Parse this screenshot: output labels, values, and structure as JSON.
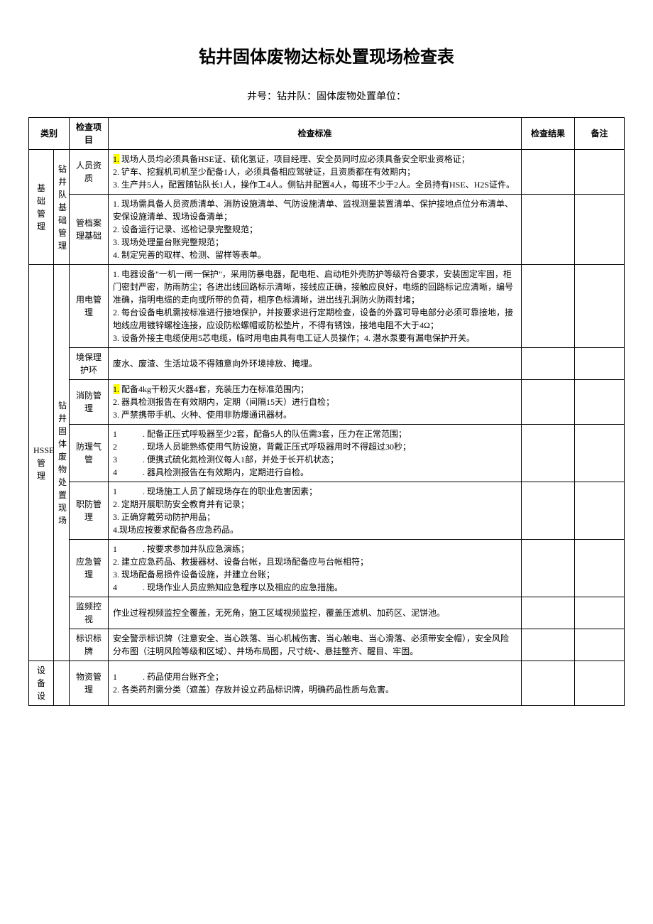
{
  "title": "钻井固体废物达标处置现场检查表",
  "subheader": "井号：钻井队：固体废物处置单位：",
  "headers": {
    "category": "类别",
    "item": "检查项目",
    "standard": "检查标准",
    "result": "检查结果",
    "remark": "备注"
  },
  "colors": {
    "highlight": "#ffff00",
    "border": "#000000",
    "bg": "#ffffff"
  },
  "rows": [
    {
      "cat1": "基础管理",
      "cat1_rowspan": 2,
      "cat2": "钻井队基础管理",
      "cat2_rowspan": 2,
      "item": "人员资质",
      "standard_lines": [
        {
          "text": "1.",
          "hl": true
        },
        {
          "text": " 现场人员均必须具备HSE证、硫化氢证，项目经理、安全员同时应必须具备安全职业资格证；",
          "br": true
        },
        {
          "text": "2. 铲车、挖掘机司机至少配备1人，必须具备相应驾驶证，且资质都在有效期内；",
          "br": true
        },
        {
          "text": "3. 生产井5人，配置随钻队长1人，操作工4人。侧钻井配置4人，每班不少于2人。全员持有HSE、H2S证件。"
        }
      ]
    },
    {
      "item": "管档案理基础",
      "item_vertical": true,
      "standard_lines": [
        {
          "text": "1. 现场需具备人员资质清单、消防设施清单、气防设施清单、监视测量装置清单、保护接地点位分布清单、安保设施清单、现场设备清单；",
          "br": true
        },
        {
          "text": "2. 设备运行记录、巡检记录完整规范；",
          "br": true
        },
        {
          "text": "3. 现场处理量台账完整规范；",
          "br": true
        },
        {
          "text": "4. 制定完善的取样、检测、留样等表单。"
        }
      ]
    },
    {
      "cat1": "HSSE管理",
      "cat1_rowspan": 8,
      "cat2": "钻井固体废物处置现场",
      "cat2_rowspan": 8,
      "item": "用电管理",
      "standard_lines": [
        {
          "text": "1. 电器设备\"一机一闸一保护\"，采用防暴电器，配电柜、启动柜外壳防护等级符合要求，安装固定牢固，柜门密封严密，防雨防尘；各进出线回路标示清晰，接线应正确，接触应良好，电缆的回路标记应清晰，编号准确，指明电缆的走向或所带的负荷，相序色标清晰，进出线孔洞防火防雨封堵；",
          "br": true
        },
        {
          "text": "2. 每台设备电机需按标准进行接地保护，并按要求进行定期检查，设备的外露可导电部分必须可靠接地，接地线应用镀锌螺栓连接，应设防松螺帽或防松垫片，不得有锈蚀，接地电阻不大于4Ω；",
          "br": true
        },
        {
          "text": "3. 设备外接主电缆使用5芯电缆，临时用电由具有电工证人员操作；4. 潜水泵要有漏电保护开关。"
        }
      ]
    },
    {
      "item": "境保理护环",
      "item_vertical": true,
      "standard_lines": [
        {
          "text": "废水、废渣、生活垃圾不得随意向外环境排放、掩埋。"
        }
      ]
    },
    {
      "item": "消防管理",
      "standard_lines": [
        {
          "text": "1.",
          "hl": true
        },
        {
          "text": " 配备4kg干粉灭火器4套，充装压力在标准范围内；",
          "br": true
        },
        {
          "text": "2. 器具检测报告在有效期内，定期（间隔15天）进行自检；",
          "br": true
        },
        {
          "text": "3. 严禁携带手机、火种、使用非防爆通讯器材。"
        }
      ]
    },
    {
      "item": "防理气管",
      "item_vertical": true,
      "standard_lines": [
        {
          "text": "1　　　. 配备正压式呼吸器至少2套，配备5人的队伍需3套，压力在正常范围；",
          "br": true
        },
        {
          "text": "2　　　. 现场人员能熟练使用气防设施，背戴正压式呼吸器用时不得超过30秒；",
          "br": true
        },
        {
          "text": "3　　　. 便携式硫化氮检测仪每人1部，并处于长开机状态；",
          "br": true
        },
        {
          "text": "4　　　. 器具检测报告在有效期内，定期进行自检。"
        }
      ]
    },
    {
      "item": "职防管理",
      "standard_lines": [
        {
          "text": "1　　　. 现场施工人员了解现场存在的职业危害因素；",
          "br": true
        },
        {
          "text": "2. 定期开展职防安全教育并有记录；",
          "br": true
        },
        {
          "text": "3. 正确穿戴劳动防护用品；",
          "br": true
        },
        {
          "text": "4.现场应按要求配备各应急药品。"
        }
      ]
    },
    {
      "item": "应急管理",
      "standard_lines": [
        {
          "text": "1　　　. 按要求参加井队应急演练；",
          "br": true
        },
        {
          "text": "2. 建立应急药品、救援器材、设备台帐，且现场配备应与台帐相符；",
          "br": true
        },
        {
          "text": "3. 现场配备易损件设备设施，并建立台账；",
          "br": true
        },
        {
          "text": "4　　　. 现场作业人员应熟知应急程序以及相应的应急措施。"
        }
      ]
    },
    {
      "item": "监频控视",
      "item_vertical": true,
      "standard_lines": [
        {
          "text": "作业过程视频监控全覆盖，无死角，施工区域视频监控，覆盖压滤机、加药区、泥饼池。"
        }
      ]
    },
    {
      "item": "标识标牌",
      "standard_lines": [
        {
          "text": "安全警示标识牌（注意安全、当心跌落、当心机械伤害、当心触电、当心滑落、必须带安全帽），安全风险分布图（注明风险等级和区域）、井场布局图，尺寸统•、悬挂整齐、醒目、牢固。"
        }
      ]
    },
    {
      "cat1": "设备设",
      "cat1_rowspan": 1,
      "item": "物资管理",
      "standard_lines": [
        {
          "text": "1　　　. 药品使用台账齐全；",
          "br": true
        },
        {
          "text": "2. 各类药剂需分类（遮盖）存放并设立药品标识牌，明确药品性质与危害。"
        }
      ]
    }
  ]
}
